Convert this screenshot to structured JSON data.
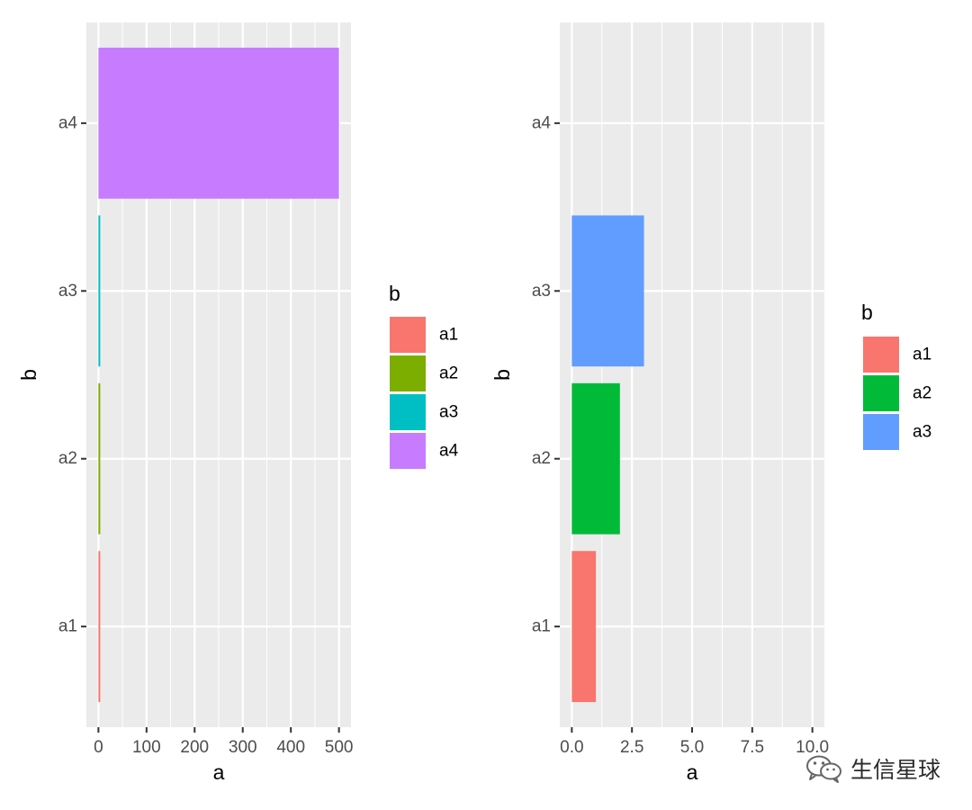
{
  "chart_data": [
    {
      "type": "bar",
      "orientation": "horizontal",
      "categories": [
        "a1",
        "a2",
        "a3",
        "a4"
      ],
      "values": [
        1,
        2,
        3,
        500
      ],
      "colors": [
        "#F8766D",
        "#7CAE00",
        "#00BFC4",
        "#C77CFF"
      ],
      "xlabel": "a",
      "ylabel": "b",
      "xlim": [
        -25,
        525
      ],
      "xticks": [
        0,
        100,
        200,
        300,
        400,
        500
      ],
      "xtick_labels": [
        "0",
        "100",
        "200",
        "300",
        "400",
        "500"
      ],
      "grid": true,
      "legend": {
        "title": "b",
        "position": "right",
        "entries": [
          {
            "label": "a1",
            "color": "#F8766D"
          },
          {
            "label": "a2",
            "color": "#7CAE00"
          },
          {
            "label": "a3",
            "color": "#00BFC4"
          },
          {
            "label": "a4",
            "color": "#C77CFF"
          }
        ]
      }
    },
    {
      "type": "bar",
      "orientation": "horizontal",
      "categories": [
        "a1",
        "a2",
        "a3",
        "a4"
      ],
      "values": [
        1,
        2,
        3,
        null
      ],
      "colors": [
        "#F8766D",
        "#00BA38",
        "#619CFF",
        null
      ],
      "xlabel": "a",
      "ylabel": "b",
      "xlim": [
        -0.5,
        10.5
      ],
      "xticks": [
        0,
        2.5,
        5,
        7.5,
        10
      ],
      "xtick_labels": [
        "0.0",
        "2.5",
        "5.0",
        "7.5",
        "10.0"
      ],
      "grid": true,
      "legend": {
        "title": "b",
        "position": "right",
        "entries": [
          {
            "label": "a1",
            "color": "#F8766D"
          },
          {
            "label": "a2",
            "color": "#00BA38"
          },
          {
            "label": "a3",
            "color": "#619CFF"
          }
        ]
      }
    }
  ],
  "watermark": {
    "text": "生信星球",
    "icon": "wechat-icon"
  }
}
